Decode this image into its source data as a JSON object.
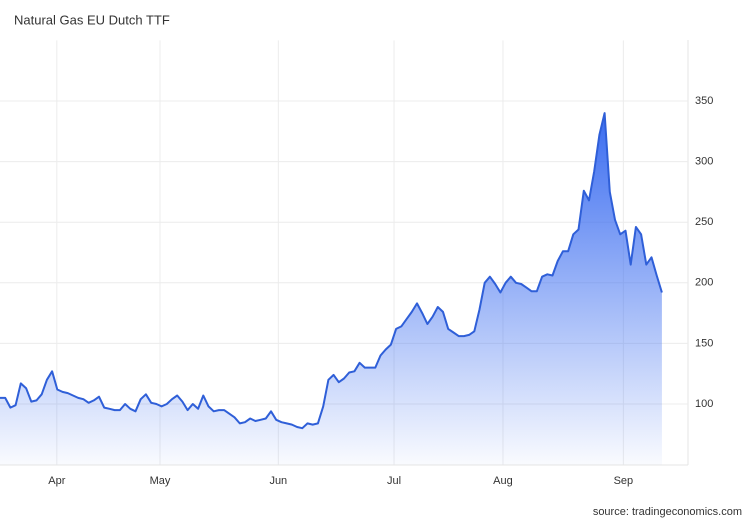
{
  "chart_data": {
    "type": "area",
    "title": "Natural Gas EU Dutch TTF",
    "source": "source: tradingeconomics.com",
    "series": [
      {
        "name": "Natural Gas EU Dutch TTF",
        "color": "#2f5fd8",
        "values": [
          105,
          105,
          97,
          99,
          117,
          113,
          102,
          103,
          108,
          120,
          127,
          112,
          110,
          109,
          107,
          105,
          104,
          101,
          103,
          106,
          97,
          96,
          95,
          95,
          100,
          96,
          94,
          104,
          108,
          101,
          100,
          98,
          100,
          104,
          107,
          102,
          95,
          100,
          96,
          107,
          98,
          94,
          95,
          95,
          92,
          89,
          84,
          85,
          88,
          86,
          87,
          88,
          94,
          87,
          85,
          84,
          83,
          81,
          80,
          84,
          83,
          84,
          98,
          120,
          124,
          118,
          121,
          126,
          127,
          134,
          130,
          130,
          130,
          140,
          145,
          149,
          162,
          164,
          170,
          176,
          183,
          175,
          166,
          172,
          180,
          176,
          162,
          159,
          156,
          156,
          157,
          160,
          178,
          200,
          205,
          199,
          192,
          200,
          205,
          200,
          199,
          196,
          193,
          193,
          205,
          207,
          206,
          218,
          226,
          226,
          240,
          244,
          276,
          268,
          292,
          322,
          340,
          275,
          252,
          240,
          243,
          215,
          246,
          240,
          215,
          221,
          206,
          192
        ]
      }
    ],
    "xlim": [
      0,
      132
    ],
    "xticks": [
      {
        "value": 10.9,
        "label": "Apr"
      },
      {
        "value": 30.7,
        "label": "May"
      },
      {
        "value": 53.4,
        "label": "Jun"
      },
      {
        "value": 75.6,
        "label": "Jul"
      },
      {
        "value": 96.5,
        "label": "Aug"
      },
      {
        "value": 119.6,
        "label": "Sep"
      }
    ],
    "ylim": [
      50,
      400
    ],
    "yticks": [
      100,
      150,
      200,
      250,
      300,
      350
    ],
    "grid": true
  }
}
